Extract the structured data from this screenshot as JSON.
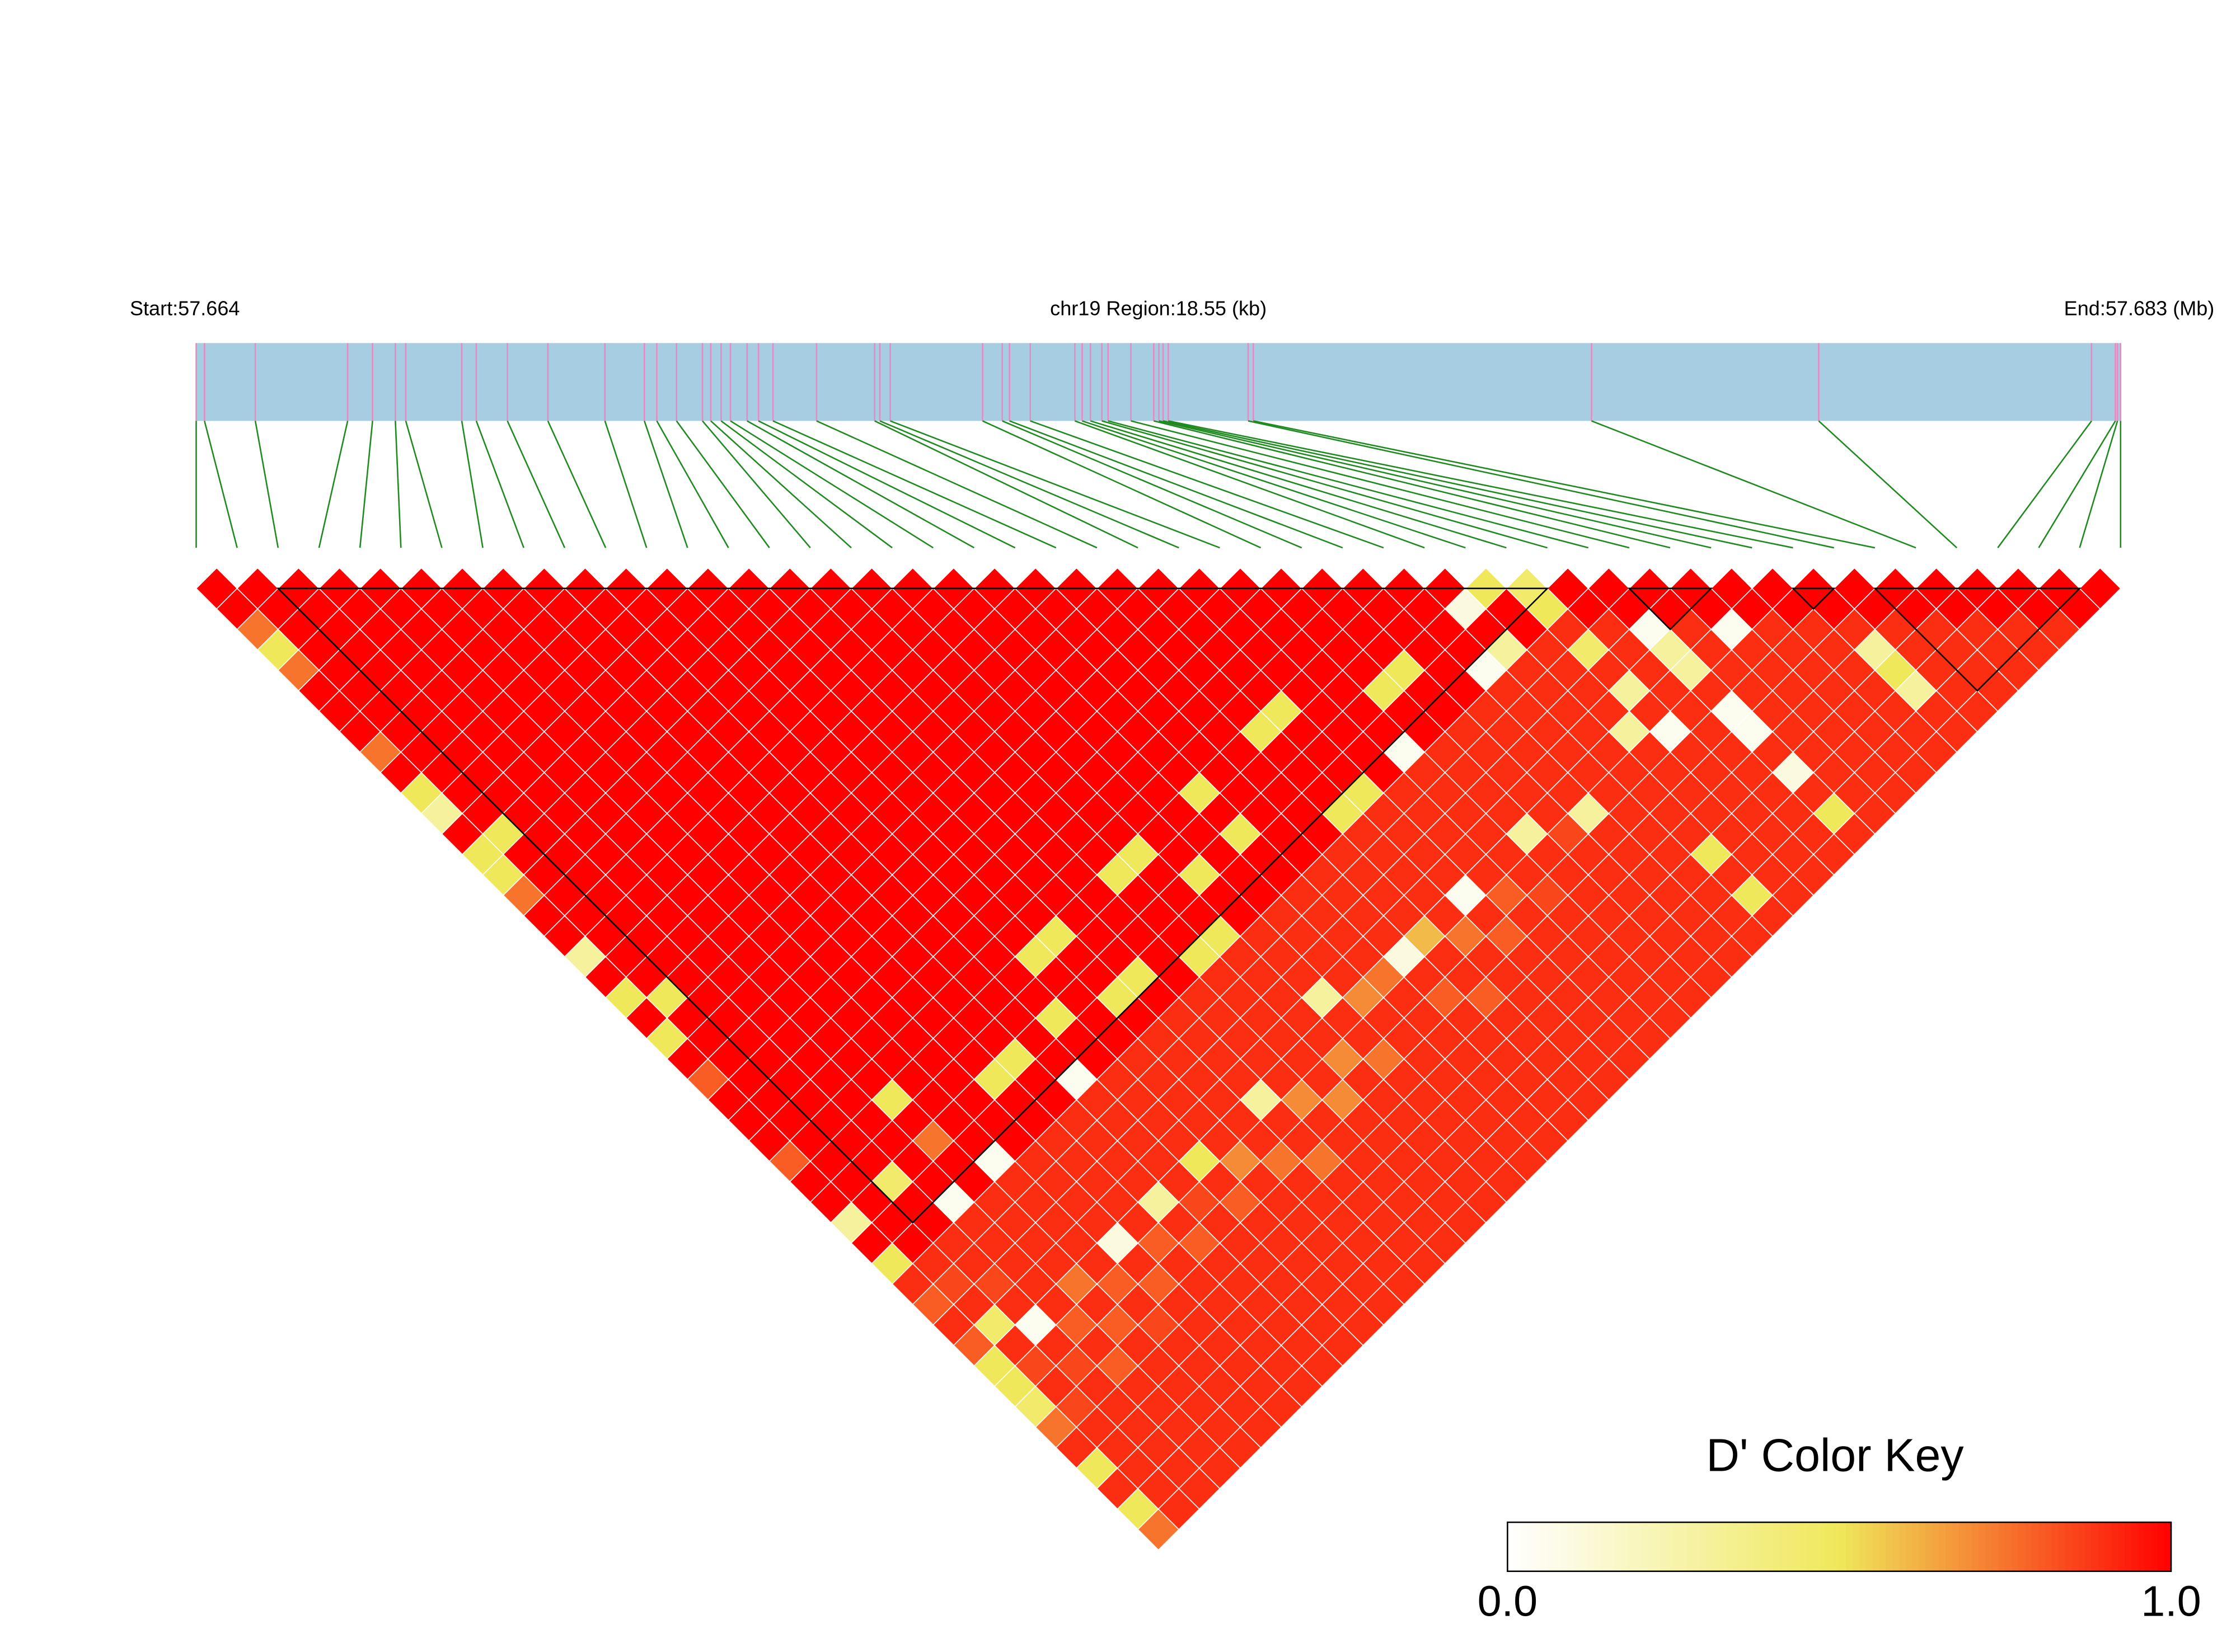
{
  "chart_data": {
    "type": "heatmap",
    "start_label": "Start:57.664",
    "region_label": "chr19 Region:18.55 (kb)",
    "end_label": "End:57.683 (Mb)",
    "xlim": [
      0,
      18.55
    ],
    "snp_positions_kb": [
      0,
      0.08,
      0.57,
      1.46,
      1.7,
      1.92,
      2.02,
      2.56,
      2.7,
      3.0,
      3.39,
      3.94,
      4.32,
      4.44,
      4.63,
      4.88,
      4.96,
      5.06,
      5.15,
      5.31,
      5.42,
      5.56,
      5.98,
      6.54,
      6.59,
      6.69,
      7.58,
      7.77,
      7.84,
      8.04,
      8.47,
      8.54,
      8.62,
      8.73,
      8.79,
      9.01,
      9.23,
      9.28,
      9.32,
      9.37,
      10.14,
      10.19,
      13.45,
      15.64,
      18.27,
      18.5,
      18.52,
      18.55
    ],
    "matrix": [
      [
        1,
        1,
        0.75,
        0.5,
        0.75,
        1,
        1,
        1,
        0.75,
        1,
        0.5,
        0.3,
        1,
        0.5,
        0.5,
        0.75,
        1,
        1,
        0.3,
        1,
        0.5,
        1,
        0.5,
        1,
        0.8,
        1,
        1,
        1,
        0.8,
        1,
        1,
        0.3,
        1,
        0.5,
        0.9,
        0.8,
        0.9,
        0.8,
        0.5,
        0.5,
        0.45,
        0.75,
        0.9,
        0.5,
        0.9,
        0.5,
        0.75
      ],
      [
        1,
        1,
        1,
        1,
        1,
        1,
        1,
        1,
        1,
        1,
        1,
        1,
        0.5,
        1,
        1,
        1,
        1,
        1,
        1,
        1,
        0.5,
        1,
        1,
        1,
        1,
        1,
        1,
        1,
        1,
        1,
        1,
        1,
        1,
        0.9,
        0.85,
        0.9,
        0.45,
        0.9,
        0.85,
        0.9,
        0.85,
        0.9,
        0.9,
        0.9,
        0.9,
        0.9
      ],
      [
        1,
        1,
        1,
        1,
        1,
        1,
        1,
        1,
        1,
        1,
        1,
        1,
        1,
        1,
        1,
        1,
        1,
        1,
        1,
        1,
        1,
        1,
        1,
        1,
        1,
        1,
        1,
        1,
        1,
        0.45,
        1,
        1,
        0.9,
        0.9,
        0.85,
        0.9,
        0.05,
        0.9,
        0.85,
        0.9,
        0.9,
        0.9,
        0.9,
        0.9,
        0.9
      ],
      [
        1,
        1,
        1,
        1,
        1,
        1,
        1,
        1,
        1,
        1,
        1,
        1,
        1,
        1,
        1,
        1,
        1,
        1,
        1,
        1,
        1,
        1,
        1,
        1,
        1,
        1,
        1,
        1,
        1,
        1,
        0.05,
        0.9,
        0.9,
        0.9,
        0.9,
        0.9,
        0.8,
        0.9,
        0.8,
        0.9,
        0.9,
        0.9,
        0.9,
        0.9
      ],
      [
        1,
        1,
        1,
        1,
        1,
        1,
        1,
        1,
        1,
        1,
        1,
        1,
        1,
        1,
        1,
        1,
        1,
        1,
        1,
        1,
        1,
        1,
        1,
        1,
        1,
        0.5,
        1,
        0.75,
        1,
        1,
        0.9,
        0.9,
        0.9,
        0.9,
        0.75,
        0.9,
        0.8,
        0.9,
        0.9,
        0.9,
        0.9,
        0.9,
        0.9
      ],
      [
        1,
        1,
        1,
        1,
        1,
        1,
        1,
        1,
        1,
        1,
        1,
        1,
        1,
        1,
        1,
        1,
        1,
        1,
        1,
        1,
        1,
        1,
        1,
        1,
        1,
        1,
        1,
        1,
        0.05,
        0.9,
        0.9,
        0.9,
        0.9,
        0.9,
        0.8,
        0.9,
        0.85,
        0.9,
        0.9,
        0.9,
        0.9,
        0.9
      ],
      [
        1,
        1,
        1,
        1,
        1,
        1,
        1,
        1,
        1,
        1,
        1,
        1,
        1,
        1,
        1,
        1,
        1,
        1,
        1,
        1,
        1,
        1,
        1,
        1,
        1,
        1,
        1,
        1,
        0.9,
        0.9,
        0.9,
        0.9,
        0.1,
        0.9,
        0.8,
        0.9,
        0.9,
        0.9,
        0.9,
        0.9,
        0.9
      ],
      [
        1,
        1,
        1,
        1,
        1,
        1,
        1,
        1,
        1,
        1,
        1,
        1,
        1,
        1,
        1,
        1,
        1,
        1,
        1,
        1,
        1,
        1,
        1,
        1,
        0.5,
        1,
        1,
        0.9,
        0.9,
        0.9,
        0.9,
        0.9,
        0.8,
        0.9,
        0.9,
        0.9,
        0.9,
        0.9,
        0.9,
        0.9
      ],
      [
        1,
        1,
        1,
        1,
        1,
        1,
        1,
        1,
        1,
        1,
        1,
        1,
        1,
        1,
        1,
        1,
        1,
        1,
        1,
        1,
        1,
        1,
        1,
        0.5,
        1,
        1,
        0.9,
        0.9,
        0.9,
        0.9,
        0.3,
        0.9,
        0.8,
        0.9,
        0.9,
        0.9,
        0.9,
        0.9,
        0.9
      ],
      [
        1,
        1,
        1,
        1,
        1,
        1,
        1,
        1,
        1,
        1,
        1,
        1,
        1,
        1,
        1,
        1,
        1,
        1,
        1,
        1,
        1,
        1,
        1,
        1,
        0.05,
        0.9,
        0.9,
        0.9,
        0.9,
        0.9,
        0.85,
        0.9,
        0.9,
        0.9,
        0.9,
        0.9,
        0.9,
        0.9
      ],
      [
        1,
        1,
        1,
        1,
        1,
        1,
        1,
        1,
        1,
        1,
        1,
        1,
        1,
        1,
        1,
        1,
        1,
        1,
        1,
        1,
        1,
        0.5,
        1,
        1,
        0.9,
        0.9,
        0.9,
        0.9,
        0.5,
        0.9,
        0.8,
        0.9,
        0.9,
        0.9,
        0.9,
        0.9,
        0.9
      ],
      [
        1,
        1,
        1,
        1,
        1,
        1,
        1,
        1,
        1,
        1,
        1,
        1,
        1,
        1,
        1,
        1,
        1,
        1,
        0.5,
        1,
        1,
        1,
        1,
        0.9,
        0.9,
        0.9,
        0.9,
        0.9,
        0.7,
        0.9,
        0.9,
        0.9,
        0.9,
        0.9,
        0.9,
        0.9
      ],
      [
        1,
        1,
        1,
        1,
        1,
        1,
        1,
        1,
        1,
        1,
        1,
        1,
        1,
        1,
        1,
        1,
        1,
        0.5,
        1,
        1,
        0.5,
        1,
        0.9,
        0.9,
        0.9,
        0.9,
        0.9,
        0.9,
        0.75,
        0.9,
        0.9,
        0.9,
        0.9,
        0.9,
        0.9
      ],
      [
        1,
        1,
        1,
        1,
        1,
        1,
        1,
        1,
        1,
        1,
        1,
        1,
        1,
        1,
        1,
        1,
        1,
        1,
        1,
        0.5,
        1,
        0.9,
        0.9,
        0.9,
        0.9,
        0.3,
        0.9,
        0.9,
        0.75,
        0.9,
        0.9,
        0.9,
        0.9,
        0.9
      ],
      [
        1,
        1,
        1,
        1,
        1,
        1,
        1,
        1,
        1,
        1,
        1,
        1,
        1,
        1,
        1,
        1,
        1,
        1,
        1,
        1,
        0.9,
        0.9,
        0.9,
        0.9,
        0.9,
        0.7,
        0.9,
        0.9,
        0.9,
        0.9,
        0.9,
        0.9,
        0.9
      ],
      [
        1,
        1,
        1,
        1,
        1,
        1,
        1,
        1,
        1,
        1,
        1,
        1,
        1,
        1,
        0.5,
        1,
        1,
        1,
        0.5,
        0.9,
        0.9,
        0.9,
        0.9,
        0.9,
        0.9,
        0.7,
        0.9,
        0.9,
        0.9,
        0.9,
        0.9,
        0.9
      ],
      [
        1,
        1,
        1,
        1,
        1,
        1,
        1,
        1,
        1,
        1,
        1,
        1,
        1,
        0.5,
        1,
        1,
        1,
        0.5,
        0.9,
        0.9,
        0.9,
        0.9,
        0.9,
        0.7,
        0.9,
        0.9,
        0.9,
        0.9,
        0.9,
        0.9,
        0.9
      ],
      [
        1,
        1,
        1,
        1,
        1,
        1,
        1,
        1,
        1,
        1,
        1,
        1,
        1,
        1,
        0.5,
        1,
        1,
        0.9,
        0.9,
        0.9,
        0.3,
        0.9,
        0.9,
        0.75,
        0.9,
        0.9,
        0.9,
        0.9,
        0.9,
        0.9
      ],
      [
        1,
        1,
        1,
        1,
        1,
        1,
        1,
        1,
        1,
        1,
        1,
        1,
        1,
        1,
        1,
        1,
        0.9,
        0.9,
        0.9,
        0.9,
        0.7,
        0.9,
        0.9,
        0.9,
        0.9,
        0.9,
        0.9,
        0.9,
        0.9
      ],
      [
        1,
        1,
        1,
        1,
        1,
        1,
        1,
        1,
        1,
        1,
        0.5,
        1,
        0.5,
        1,
        1,
        0.9,
        0.9,
        0.9,
        0.9,
        0.75,
        0.9,
        0.9,
        0.9,
        0.9,
        0.9,
        0.9,
        0.9,
        0.9
      ],
      [
        1,
        1,
        1,
        1,
        1,
        1,
        1,
        1,
        1,
        1,
        1,
        1,
        1,
        1,
        0.9,
        0.9,
        0.9,
        0.9,
        0.1,
        0.9,
        0.8,
        0.9,
        0.9,
        0.9,
        0.9,
        0.9,
        0.9
      ],
      [
        1,
        1,
        1,
        1,
        1,
        1,
        1,
        1,
        1,
        1,
        1,
        1,
        1,
        0.9,
        0.9,
        0.9,
        0.9,
        0.6,
        0.9,
        0.9,
        0.8,
        0.9,
        0.9,
        0.9,
        0.9,
        0.9
      ],
      [
        1,
        1,
        1,
        1,
        1,
        1,
        1,
        0.5,
        1,
        1,
        1,
        0.5,
        0.9,
        0.9,
        0.9,
        0.9,
        0.9,
        0.75,
        0.9,
        0.9,
        0.9,
        0.9,
        0.9,
        0.9,
        0.9
      ],
      [
        1,
        1,
        1,
        1,
        1,
        1,
        0.5,
        1,
        1,
        1,
        0.5,
        0.9,
        0.9,
        0.9,
        0.9,
        0.05,
        0.9,
        0.8,
        0.9,
        0.9,
        0.9,
        0.9,
        0.9,
        0.9
      ],
      [
        1,
        1,
        1,
        1,
        1,
        1,
        1,
        1,
        1,
        1,
        0.9,
        0.9,
        0.9,
        0.9,
        0.9,
        0.8,
        0.9,
        0.9,
        0.9,
        0.9,
        0.9,
        0.9,
        0.9
      ],
      [
        1,
        1,
        1,
        1,
        1,
        1,
        1,
        1,
        0.05,
        0.9,
        0.9,
        0.9,
        0.9,
        0.9,
        0.9,
        0.85,
        0.9,
        0.9,
        0.9,
        0.9,
        0.9,
        0.9
      ],
      [
        1,
        1,
        1,
        1,
        1,
        0.5,
        1,
        1,
        0.9,
        0.9,
        0.9,
        0.9,
        0.3,
        0.9,
        0.9,
        0.9,
        0.9,
        0.9,
        0.9,
        0.9,
        0.9
      ],
      [
        1,
        1,
        1,
        1,
        0.5,
        1,
        1,
        0.9,
        0.9,
        0.9,
        0.9,
        0.9,
        0.85,
        0.9,
        0.9,
        0.9,
        0.9,
        0.9,
        0.9,
        0.9
      ],
      [
        1,
        1,
        1,
        1,
        1,
        1,
        0.9,
        0.9,
        0.9,
        0.9,
        0.9,
        0.3,
        0.9,
        0.9,
        0.9,
        0.9,
        0.9,
        0.9,
        0.9
      ],
      [
        1,
        1,
        1,
        1,
        0.05,
        0.9,
        0.9,
        0.9,
        0.9,
        0.9,
        0.9,
        0.9,
        0.9,
        0.9,
        0.9,
        0.9,
        0.9,
        0.9
      ],
      [
        1,
        0.1,
        1,
        0.3,
        0.9,
        0.9,
        0.9,
        0.9,
        0.9,
        0.9,
        0.9,
        0.9,
        0.9,
        0.5,
        0.9,
        0.5,
        0.9
      ],
      [
        0.5,
        1,
        1,
        0.9,
        0.9,
        0.9,
        0.9,
        0.3,
        0.9,
        0.9,
        0.9,
        0.9,
        0.9,
        0.9,
        0.9,
        0.9
      ],
      [
        0.45,
        0.5,
        0.9,
        0.45,
        0.9,
        0.3,
        0.9,
        0.05,
        0.9,
        0.9,
        0.9,
        0.9,
        0.9,
        0.9,
        0.9
      ],
      [
        1,
        1,
        0.9,
        0.9,
        0.9,
        0.9,
        0.9,
        0.9,
        0.9,
        0.9,
        0.9,
        0.9,
        0.9,
        0.9
      ],
      [
        1,
        1,
        0.05,
        0.3,
        0.3,
        0.9,
        0.05,
        0.05,
        0.9,
        0.1,
        0.9,
        0.5,
        0.9
      ],
      [
        1,
        1,
        0.9,
        0.9,
        0.9,
        0.9,
        0.9,
        0.9,
        0.9,
        0.9,
        0.9,
        0.9
      ],
      [
        1,
        1,
        0.05,
        0.9,
        0.9,
        0.9,
        0.9,
        0.9,
        0.9,
        0.9,
        0.9
      ],
      [
        1,
        1,
        0.9,
        0.9,
        0.9,
        0.9,
        0.9,
        0.9,
        0.9,
        0.9
      ],
      [
        1,
        1,
        0.9,
        0.9,
        0.9,
        0.9,
        0.9,
        0.9,
        0.9
      ],
      [
        1,
        1,
        0.9,
        0.3,
        0.5,
        0.3,
        0.9,
        0.9
      ],
      [
        1,
        1,
        0.9,
        0.9,
        0.9,
        0.9,
        0.9
      ],
      [
        1,
        1,
        0.9,
        0.9,
        0.9,
        0.9
      ],
      [
        1,
        1,
        0.9,
        0.9,
        0.9
      ],
      [
        1,
        1,
        0.9,
        0.9
      ],
      [
        1,
        1,
        0.9
      ],
      [
        1,
        1
      ],
      [
        1
      ]
    ],
    "blocks": [
      [
        2,
        33
      ],
      [
        35,
        37
      ],
      [
        39,
        40
      ],
      [
        41,
        46
      ]
    ],
    "track_color": "#a6cde2",
    "snp_color": "#e78ac3",
    "link_color": "#1f8a1f",
    "block_color": "#000000",
    "color_key": {
      "title": "D' Color Key",
      "lim": [
        0,
        1
      ],
      "ticks": [
        {
          "value": 0,
          "label": "0.0"
        },
        {
          "value": 1,
          "label": "1.0"
        }
      ],
      "colors": [
        "#ffffff",
        "#efe85a",
        "#ff0000"
      ]
    }
  }
}
